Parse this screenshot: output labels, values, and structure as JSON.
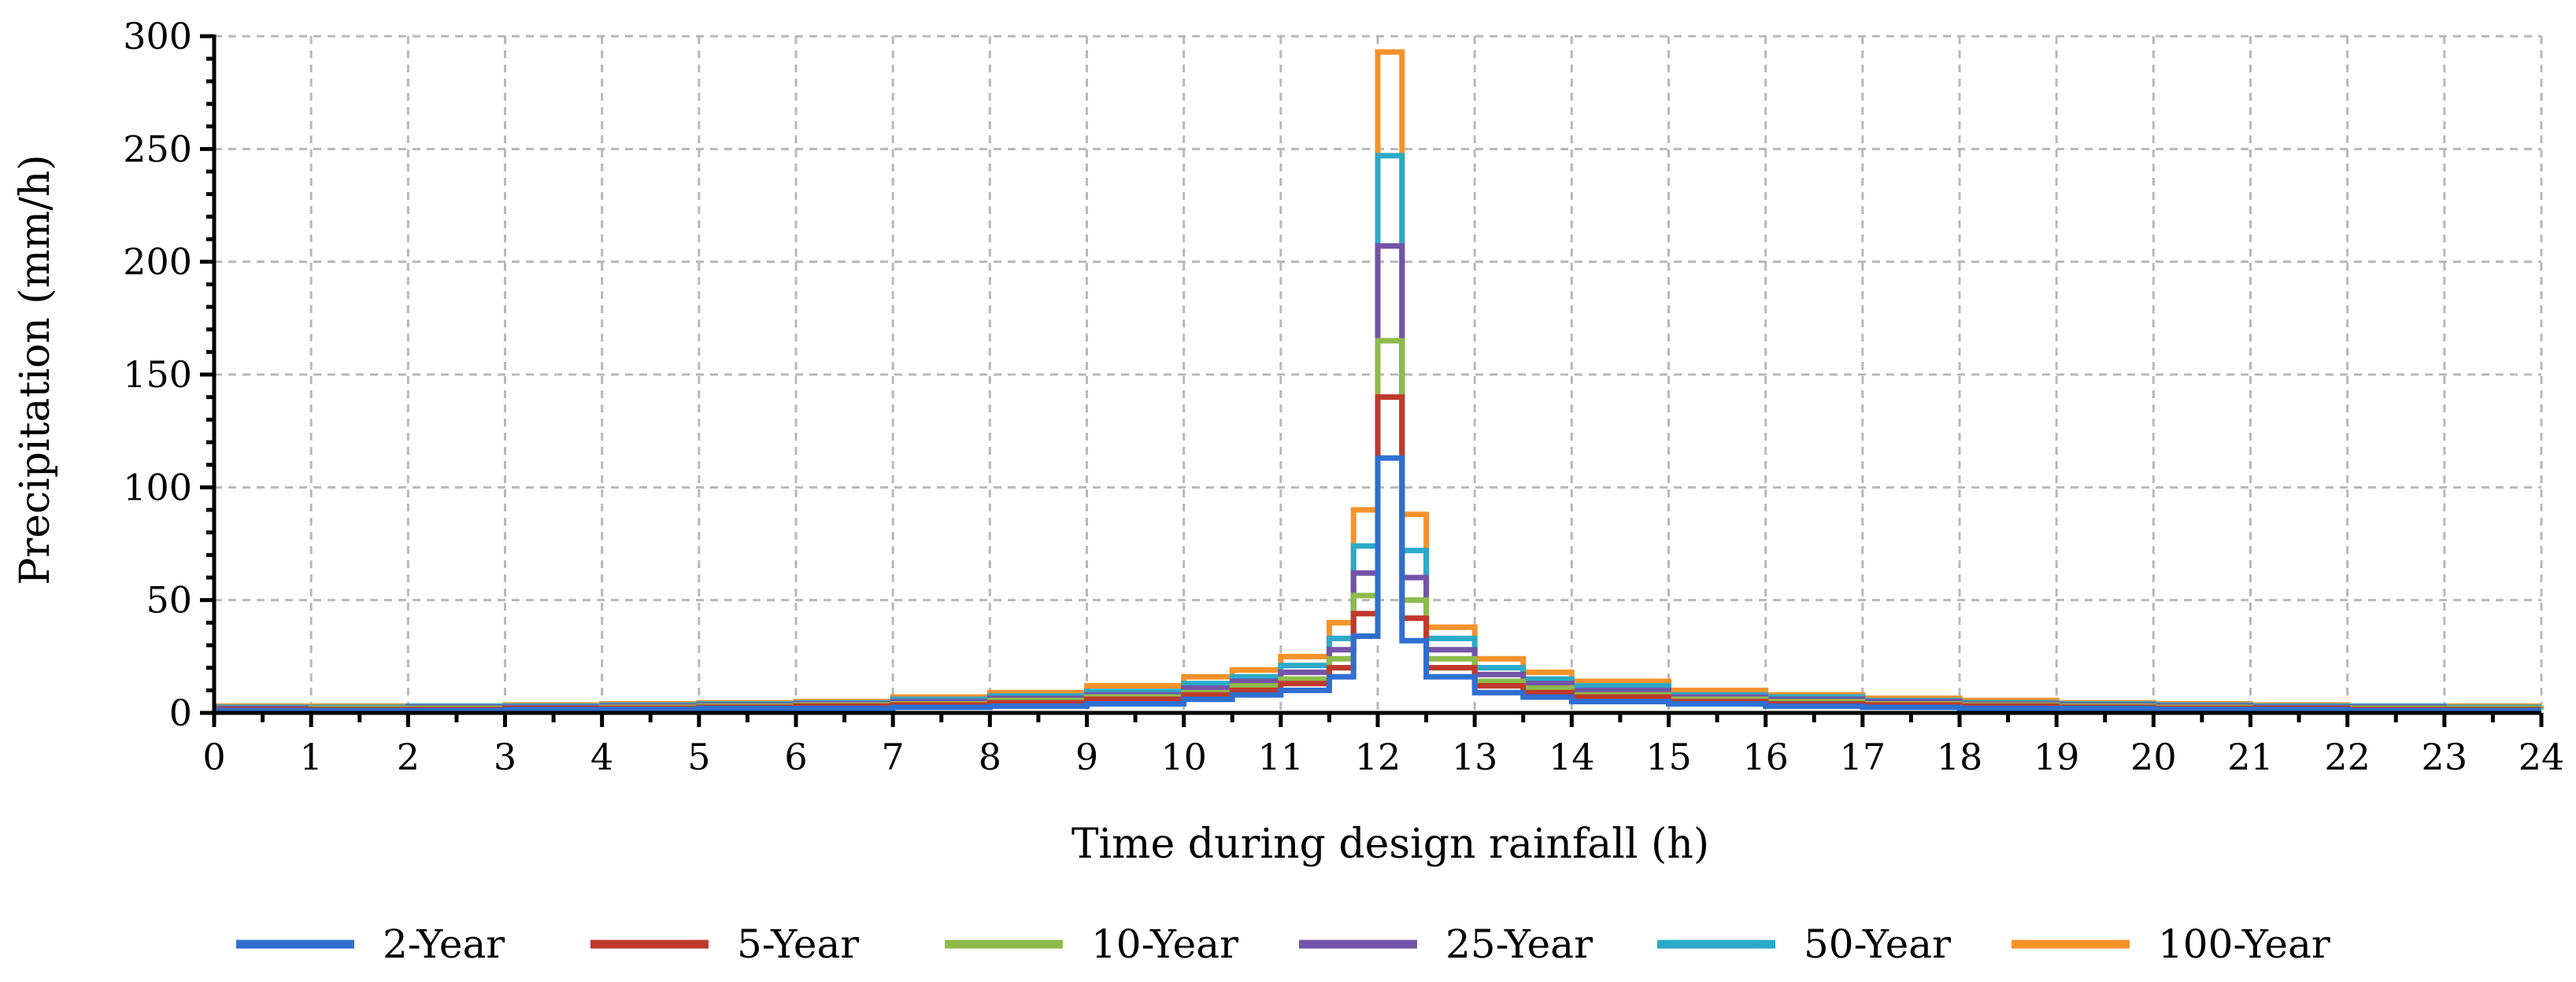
{
  "chart_data": {
    "type": "line",
    "style": "step",
    "title": "",
    "xlabel": "Time during design rainfall (h)",
    "ylabel": "Precipitation (mm/h)",
    "xlim": [
      0,
      24
    ],
    "ylim": [
      0,
      300
    ],
    "xticks": [
      "0",
      "1",
      "2",
      "3",
      "4",
      "5",
      "6",
      "7",
      "8",
      "9",
      "10",
      "11",
      "12",
      "13",
      "14",
      "15",
      "16",
      "17",
      "18",
      "19",
      "20",
      "21",
      "22",
      "23",
      "24"
    ],
    "yticks": [
      "0",
      "50",
      "100",
      "150",
      "200",
      "250",
      "300"
    ],
    "grid": true,
    "legend_position": "bottom",
    "x": [
      0,
      1,
      2,
      3,
      4,
      5,
      6,
      7,
      8,
      9,
      10,
      10.5,
      11,
      11.5,
      11.75,
      12,
      12.25,
      12.5,
      13,
      13.5,
      14,
      15,
      16,
      17,
      18,
      19,
      20,
      21,
      22,
      23,
      24
    ],
    "series": [
      {
        "name": "2-Year",
        "color": "#2e6fd1",
        "values": [
          1,
          1,
          1,
          1.5,
          1.5,
          2,
          2,
          2.5,
          3,
          4,
          6,
          8,
          10,
          16,
          34,
          113,
          32,
          16,
          9,
          7,
          5,
          4,
          3,
          2.5,
          2,
          2,
          1.5,
          1.5,
          1,
          1,
          1
        ]
      },
      {
        "name": "5-Year",
        "color": "#c0392b",
        "values": [
          1.5,
          1.5,
          1.5,
          2,
          2,
          2.5,
          3,
          3.5,
          4.5,
          6,
          8,
          10,
          13,
          20,
          44,
          140,
          42,
          20,
          12,
          9,
          7,
          5,
          4,
          3.5,
          3,
          2.5,
          2,
          2,
          1.5,
          1.5,
          1.5
        ]
      },
      {
        "name": "10-Year",
        "color": "#8dbb4a",
        "values": [
          1.5,
          2,
          2,
          2,
          2.5,
          3,
          3.5,
          4,
          5.5,
          7,
          9,
          12,
          15,
          24,
          52,
          165,
          50,
          24,
          14,
          11,
          8,
          6,
          5,
          4,
          3.5,
          3,
          2.5,
          2,
          2,
          2,
          1.5
        ]
      },
      {
        "name": "25-Year",
        "color": "#7453a8",
        "values": [
          2,
          2,
          2.5,
          2.5,
          3,
          3.5,
          4,
          5,
          6.5,
          8,
          11,
          14,
          18,
          28,
          62,
          207,
          60,
          28,
          17,
          13,
          10,
          7,
          6,
          5,
          4,
          3.5,
          3,
          2.5,
          2.5,
          2,
          2
        ]
      },
      {
        "name": "50-Year",
        "color": "#2aaac9",
        "values": [
          2.5,
          2.5,
          3,
          3,
          3.5,
          4,
          4.5,
          6,
          7.5,
          9.5,
          13,
          16,
          21,
          33,
          74,
          247,
          72,
          33,
          20,
          15,
          12,
          8,
          7,
          5.5,
          4.5,
          4,
          3.5,
          3,
          3,
          2.5,
          2.5
        ]
      },
      {
        "name": "100-Year",
        "color": "#f5922a",
        "values": [
          3,
          3,
          3,
          3.5,
          4,
          4.5,
          5,
          7,
          9,
          12,
          16,
          19,
          25,
          40,
          90,
          293,
          88,
          38,
          24,
          18,
          14,
          10,
          8,
          6.5,
          5.5,
          4.5,
          4,
          3.5,
          3,
          3,
          3
        ]
      }
    ]
  }
}
